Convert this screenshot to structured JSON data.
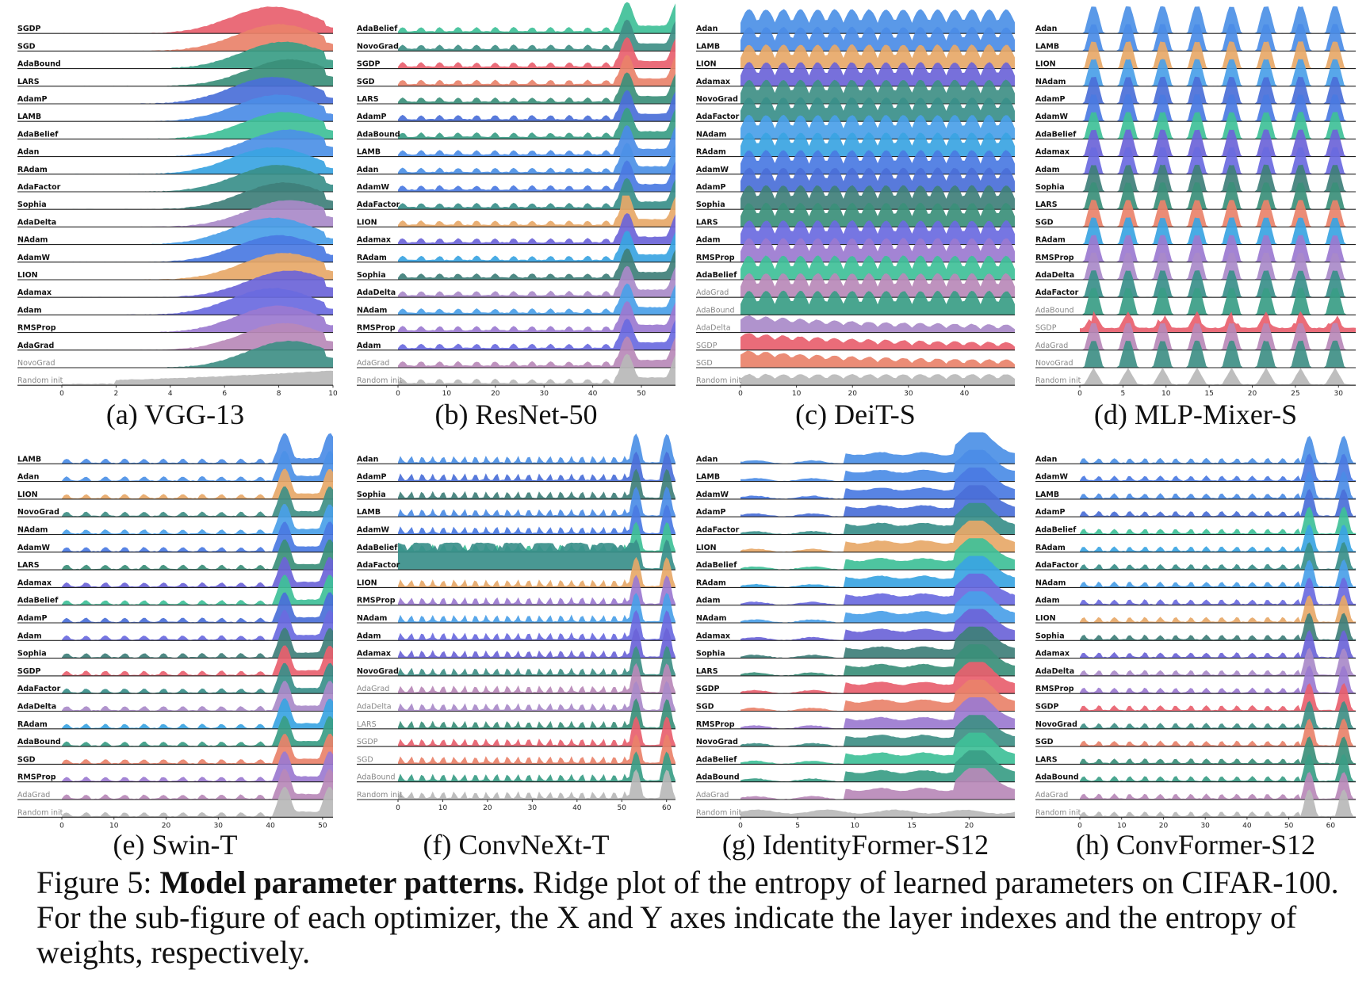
{
  "caption": {
    "label": "Figure 5:",
    "bold": "Model parameter patterns.",
    "text": "Ridge plot of the entropy of learned parameters on CIFAR-100. For the sub-figure of each optimizer, the X and Y axes indicate the layer indexes and the entropy of weights, respectively."
  },
  "colors": {
    "random_init": "#b8b8b8",
    "SGDP": "#e8606e",
    "SGD": "#e9826a",
    "AdaBound": "#3a9d86",
    "LARS": "#3b8f7a",
    "AdamP": "#4a6fd8",
    "LAMB": "#4b8ce6",
    "AdaBelief": "#3fc098",
    "Adan": "#4c90e6",
    "RAdam": "#3aa4e2",
    "AdaFactor": "#3a8f8a",
    "Sophia": "#3f7f7a",
    "AdaDelta": "#a98ac9",
    "NAdam": "#4aa0e8",
    "AdamW": "#4a79e2",
    "LION": "#e7a868",
    "Adamax": "#6b64d8",
    "Adam": "#6a6ae0",
    "RMSProp": "#9b7ad0",
    "AdaGrad": "#b889b8",
    "NovoGrad": "#3f8f86"
  },
  "chart_data": [
    {
      "id": "a",
      "type": "area",
      "subtitle": "(a)  VGG-13",
      "pattern": "vgg",
      "optimizers": [
        "SGDP",
        "SGD",
        "AdaBound",
        "LARS",
        "AdamP",
        "LAMB",
        "AdaBelief",
        "Adan",
        "RAdam",
        "AdaFactor",
        "Sophia",
        "AdaDelta",
        "NAdam",
        "AdamW",
        "LION",
        "Adamax",
        "Adam",
        "RMSProp",
        "AdaGrad",
        "NovoGrad",
        "Random init"
      ],
      "gray_labels": [
        "NovoGrad",
        "Random init"
      ],
      "xlim": [
        0,
        10
      ],
      "xticks": [
        0,
        2,
        4,
        6,
        8,
        10
      ]
    },
    {
      "id": "b",
      "type": "area",
      "subtitle": "(b)  ResNet-50",
      "pattern": "resnet",
      "optimizers": [
        "AdaBelief",
        "NovoGrad",
        "SGDP",
        "SGD",
        "LARS",
        "AdamP",
        "AdaBound",
        "LAMB",
        "Adan",
        "AdamW",
        "AdaFactor",
        "LION",
        "Adamax",
        "RAdam",
        "Sophia",
        "AdaDelta",
        "NAdam",
        "RMSProp",
        "Adam",
        "AdaGrad",
        "Random init"
      ],
      "gray_labels": [
        "AdaGrad",
        "Random init"
      ],
      "xlim": [
        0,
        57
      ],
      "xticks": [
        0,
        10,
        20,
        30,
        40,
        50
      ]
    },
    {
      "id": "c",
      "type": "area",
      "subtitle": "(c)  DeiT-S",
      "pattern": "deit",
      "optimizers": [
        "Adan",
        "LAMB",
        "LION",
        "Adamax",
        "NovoGrad",
        "AdaFactor",
        "NAdam",
        "RAdam",
        "AdamW",
        "AdamP",
        "Sophia",
        "LARS",
        "Adam",
        "RMSProp",
        "AdaBelief",
        "AdaGrad",
        "AdaBound",
        "AdaDelta",
        "SGDP",
        "SGD",
        "Random init"
      ],
      "gray_labels": [
        "AdaGrad",
        "AdaBound",
        "AdaDelta",
        "SGDP",
        "SGD",
        "Random init"
      ],
      "xlim": [
        0,
        49
      ],
      "xticks": [
        0,
        10,
        20,
        30,
        40
      ]
    },
    {
      "id": "d",
      "type": "area",
      "subtitle": "(d)  MLP-Mixer-S",
      "pattern": "mixer",
      "optimizers": [
        "Adan",
        "LAMB",
        "LION",
        "NAdam",
        "AdamP",
        "AdamW",
        "AdaBelief",
        "Adamax",
        "Adam",
        "Sophia",
        "LARS",
        "SGD",
        "RAdam",
        "RMSProp",
        "AdaDelta",
        "AdaFactor",
        "AdaBound",
        "SGDP",
        "AdaGrad",
        "NovoGrad",
        "Random init"
      ],
      "gray_labels": [
        "AdaBound",
        "SGDP",
        "AdaGrad",
        "NovoGrad",
        "Random init"
      ],
      "xlim": [
        0,
        32
      ],
      "xticks": [
        0,
        5,
        10,
        15,
        20,
        25,
        30
      ]
    },
    {
      "id": "e",
      "type": "area",
      "subtitle": "(e)  Swin-T",
      "pattern": "swin",
      "optimizers": [
        "LAMB",
        "Adan",
        "LION",
        "NovoGrad",
        "NAdam",
        "AdamW",
        "LARS",
        "Adamax",
        "AdaBelief",
        "AdamP",
        "Adam",
        "Sophia",
        "SGDP",
        "AdaFactor",
        "AdaDelta",
        "RAdam",
        "AdaBound",
        "SGD",
        "RMSProp",
        "AdaGrad",
        "Random init"
      ],
      "gray_labels": [
        "AdaGrad",
        "Random init"
      ],
      "xlim": [
        0,
        52
      ],
      "xticks": [
        0,
        10,
        20,
        30,
        40,
        50
      ]
    },
    {
      "id": "f",
      "type": "area",
      "subtitle": "(f)  ConvNeXt-T",
      "pattern": "convnext",
      "optimizers": [
        "Adan",
        "AdamP",
        "Sophia",
        "LAMB",
        "AdamW",
        "AdaBelief",
        "AdaFactor",
        "LION",
        "RMSProp",
        "NAdam",
        "Adam",
        "Adamax",
        "NovoGrad",
        "AdaGrad",
        "AdaDelta",
        "LARS",
        "SGDP",
        "SGD",
        "AdaBound",
        "Random init"
      ],
      "gray_labels": [
        "AdaGrad",
        "AdaDelta",
        "LARS",
        "SGDP",
        "SGD",
        "AdaBound",
        "Random init"
      ],
      "xlim": [
        0,
        62
      ],
      "xticks": [
        0,
        10,
        20,
        30,
        40,
        50,
        60
      ]
    },
    {
      "id": "g",
      "type": "area",
      "subtitle": "(g)  IdentityFormer-S12",
      "pattern": "identity",
      "optimizers": [
        "Adan",
        "LAMB",
        "AdamW",
        "AdamP",
        "AdaFactor",
        "LION",
        "AdaBelief",
        "RAdam",
        "Adam",
        "NAdam",
        "Adamax",
        "Sophia",
        "LARS",
        "SGDP",
        "SGD",
        "RMSProp",
        "NovoGrad",
        "AdaBelief",
        "AdaBound",
        "AdaGrad",
        "Random init"
      ],
      "gray_labels": [
        "AdaGrad",
        "Random init"
      ],
      "xlim": [
        0,
        24
      ],
      "xticks": [
        0,
        5,
        10,
        15,
        20
      ]
    },
    {
      "id": "h",
      "type": "area",
      "subtitle": "(h)  ConvFormer-S12",
      "pattern": "convformer",
      "optimizers": [
        "Adan",
        "AdamW",
        "LAMB",
        "AdamP",
        "AdaBelief",
        "RAdam",
        "AdaFactor",
        "NAdam",
        "Adam",
        "LION",
        "Sophia",
        "Adamax",
        "AdaDelta",
        "RMSProp",
        "SGDP",
        "NovoGrad",
        "SGD",
        "LARS",
        "AdaBound",
        "AdaGrad",
        "Random init"
      ],
      "gray_labels": [
        "AdaGrad",
        "Random init"
      ],
      "xlim": [
        0,
        66
      ],
      "xticks": [
        0,
        10,
        20,
        30,
        40,
        50,
        60
      ]
    }
  ]
}
